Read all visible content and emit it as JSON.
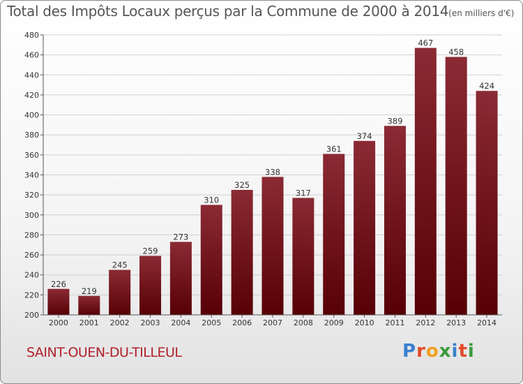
{
  "header": {
    "title": "Total des Impôts Locaux perçus par la Commune de 2000 à 2014",
    "unit": "(en milliers d'€)"
  },
  "footer": {
    "commune": "SAINT-OUEN-DU-TILLEUL",
    "brand_letters": [
      "P",
      "r",
      "o",
      "x",
      "i",
      "t",
      "i"
    ],
    "brand_colors": [
      "#3a7fd0",
      "#e24a2a",
      "#f0a020",
      "#3a9a3a",
      "#3a7fd0",
      "#e24a2a",
      "#3a9a3a"
    ]
  },
  "chart_data": {
    "type": "bar",
    "title": "Total des Impôts Locaux perçus par la Commune de 2000 à 2014",
    "xlabel": "",
    "ylabel": "",
    "categories": [
      "2000",
      "2001",
      "2002",
      "2003",
      "2004",
      "2005",
      "2006",
      "2007",
      "2008",
      "2009",
      "2010",
      "2011",
      "2012",
      "2013",
      "2014"
    ],
    "values": [
      226,
      219,
      245,
      259,
      273,
      310,
      325,
      338,
      317,
      361,
      374,
      389,
      467,
      458,
      424
    ],
    "ylim": [
      200,
      480
    ],
    "yticks": [
      200,
      220,
      240,
      260,
      280,
      300,
      320,
      340,
      360,
      380,
      400,
      420,
      440,
      460,
      480
    ],
    "grid": true,
    "bar_color_top": "#8b2a34",
    "bar_color_bottom": "#560005"
  }
}
